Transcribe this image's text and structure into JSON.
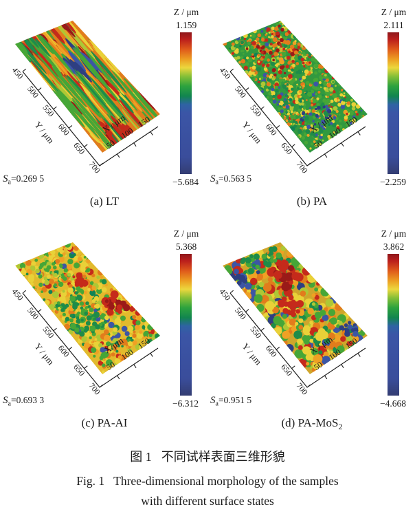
{
  "figure": {
    "caption_zh_label": "图 1",
    "caption_zh_text": "不同试样表面三维形貌",
    "caption_en_label": "Fig. 1",
    "caption_en_text": "Three-dimensional morphology of the samples",
    "caption_en_line2": "with different surface states"
  },
  "chart_data": {
    "type": "heatmap",
    "subtype": "3d-surface-morphology",
    "description": "Four pseudo-3D surface morphology maps of samples with different surface states, each with a rainbow Z colorbar and an Sa roughness annotation",
    "x_axis": {
      "label": "X / μm",
      "ticks": [
        "50",
        "100",
        "150"
      ],
      "range": [
        0,
        175
      ]
    },
    "y_axis": {
      "label": "Y / μm",
      "ticks": [
        "450",
        "500",
        "550",
        "600",
        "650",
        "700"
      ],
      "range": [
        450,
        700
      ]
    },
    "z_axis": {
      "label": "Z / μm"
    },
    "colorbar_stops": [
      {
        "t": 0.0,
        "c": "#8e171b"
      },
      {
        "t": 0.05,
        "c": "#bb1f1c"
      },
      {
        "t": 0.12,
        "c": "#df5a1b"
      },
      {
        "t": 0.19,
        "c": "#ec9e22"
      },
      {
        "t": 0.25,
        "c": "#ecd73e"
      },
      {
        "t": 0.31,
        "c": "#86bf37"
      },
      {
        "t": 0.38,
        "c": "#2da23e"
      },
      {
        "t": 0.45,
        "c": "#12854f"
      },
      {
        "t": 0.51,
        "c": "#2f63a4"
      },
      {
        "t": 0.57,
        "c": "#3b55a6"
      },
      {
        "t": 0.88,
        "c": "#3a4d9b"
      },
      {
        "t": 1.0,
        "c": "#333d72"
      }
    ],
    "panels": [
      {
        "id": "a",
        "sample": "LT",
        "caption": "(a) LT",
        "caption_sub": "",
        "z_label": "Z / μm",
        "z_max_label": "1.159",
        "z_min_label": "−5.684",
        "z_max": 1.159,
        "z_min": -5.684,
        "sa": {
          "symbol": "S",
          "sub": "a",
          "value": "=0.269 5"
        },
        "x_label": "X / μm",
        "y_label": "Y / μm",
        "texture": "turning-streaks"
      },
      {
        "id": "b",
        "sample": "PA",
        "caption": "(b) PA",
        "caption_sub": "",
        "z_label": "Z / μm",
        "z_max_label": "2.111",
        "z_min_label": "−2.259",
        "z_max": 2.111,
        "z_min": -2.259,
        "sa": {
          "symbol": "S",
          "sub": "a",
          "value": "=0.563 5"
        },
        "x_label": "X / μm",
        "y_label": "Y / μm",
        "texture": "fine-speckle"
      },
      {
        "id": "c",
        "sample": "PA-AI",
        "caption": "(c) PA-AI",
        "caption_sub": "",
        "z_label": "Z / μm",
        "z_max_label": "5.368",
        "z_min_label": "−6.312",
        "z_max": 5.368,
        "z_min": -6.312,
        "sa": {
          "symbol": "S",
          "sub": "a",
          "value": "=0.693 3"
        },
        "x_label": "X/μm",
        "y_label": "Y / μm",
        "texture": "speckle-blotch"
      },
      {
        "id": "d",
        "sample": "PA-MoS2",
        "caption": "(d) PA-MoS",
        "caption_sub": "2",
        "z_label": "Z / μm",
        "z_max_label": "3.862",
        "z_min_label": "−4.668",
        "z_max": 3.862,
        "z_min": -4.668,
        "sa": {
          "symbol": "S",
          "sub": "a",
          "value": "=0.951 5"
        },
        "x_label": "X / μm",
        "y_label": "Y / μm",
        "texture": "coarse-blotch"
      }
    ]
  }
}
